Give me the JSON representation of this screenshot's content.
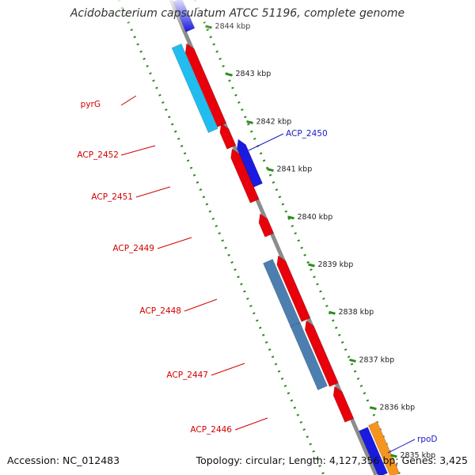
{
  "title": "Acidobacterium capsulatum ATCC 51196, complete genome",
  "footer": {
    "accession": "Accession: NC_012483",
    "summary": "Topology: circular; Length: 4,127,356 bp; Genes: 3,425"
  },
  "colors": {
    "backbone": "#8c8c8c",
    "ruler": "#2e8b1f",
    "forward_cds": "#e8000b",
    "reverse_cds": "#1a1ae0",
    "rna_light": "#22bdf0",
    "rna_steel": "#4c7fb0",
    "other": "#f5941e",
    "label_forward": "#d40000",
    "label_reverse": "#1a1ac8"
  },
  "scale_ticks": [
    {
      "label": "2844 kbp"
    },
    {
      "label": "2843 kbp"
    },
    {
      "label": "2842 kbp"
    },
    {
      "label": "2841 kbp"
    },
    {
      "label": "2840 kbp"
    },
    {
      "label": "2839 kbp"
    },
    {
      "label": "2838 kbp"
    },
    {
      "label": "2837 kbp"
    },
    {
      "label": "2836 kbp"
    },
    {
      "label": "2835 kbp"
    }
  ],
  "gene_labels": [
    {
      "label": "pyrG",
      "strand": "forward"
    },
    {
      "label": "ACP_2452",
      "strand": "forward"
    },
    {
      "label": "ACP_2451",
      "strand": "forward"
    },
    {
      "label": "ACP_2449",
      "strand": "forward"
    },
    {
      "label": "ACP_2448",
      "strand": "forward"
    },
    {
      "label": "ACP_2447",
      "strand": "forward"
    },
    {
      "label": "ACP_2446",
      "strand": "forward"
    },
    {
      "label": "ACP_2450",
      "strand": "reverse"
    },
    {
      "label": "rpoD",
      "strand": "reverse"
    }
  ]
}
